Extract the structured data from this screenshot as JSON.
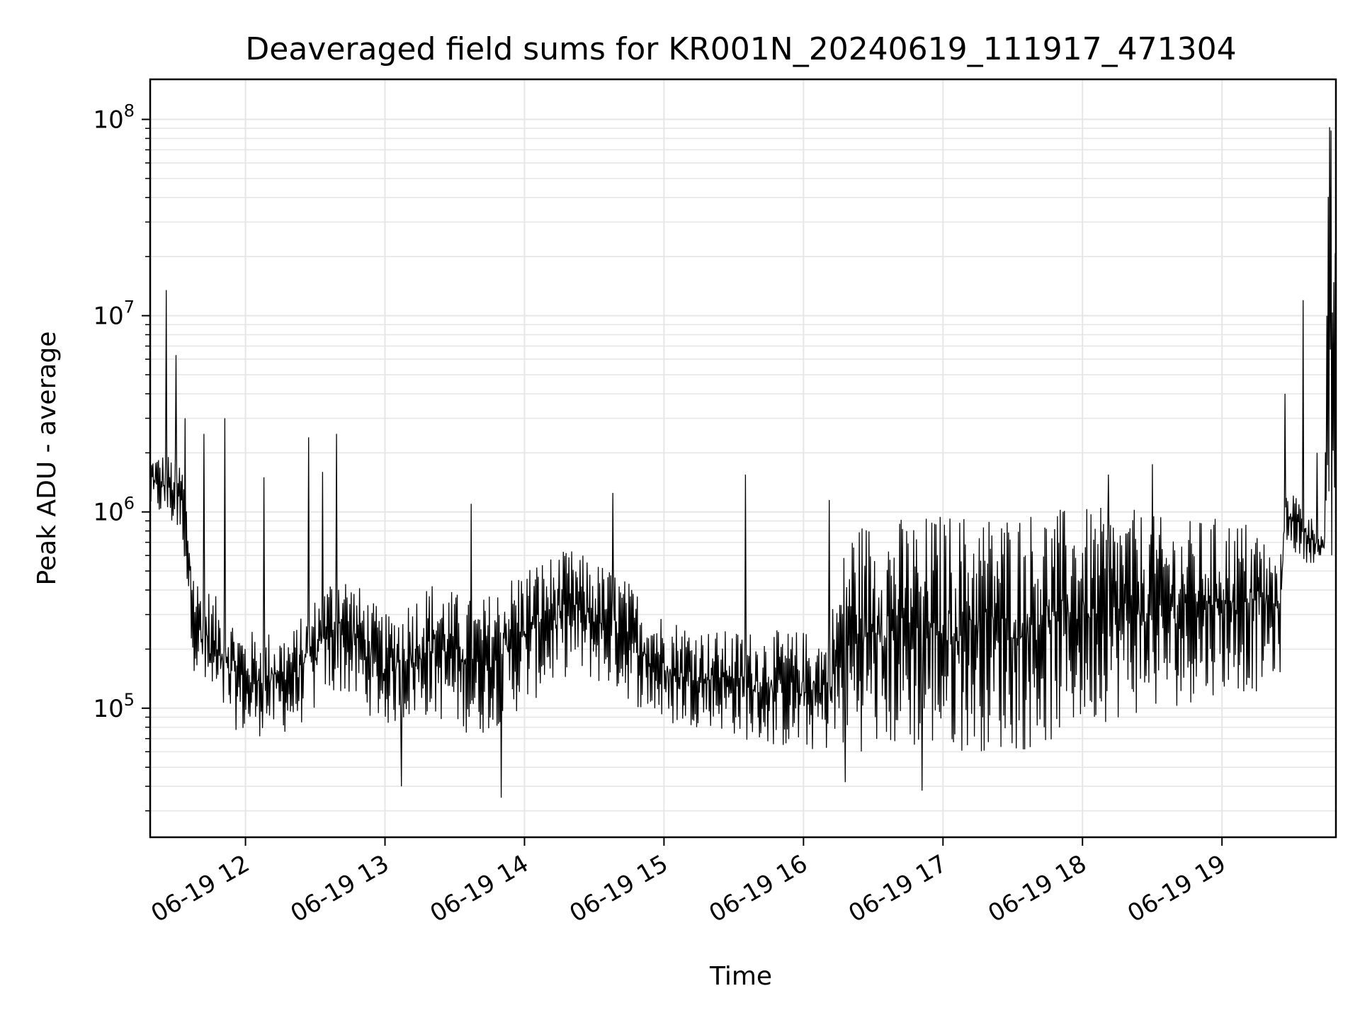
{
  "chart_data": {
    "type": "line",
    "title": "Deaveraged field sums for KR001N_20240619_111917_471304",
    "xlabel": "Time",
    "ylabel": "Peak ADU - average",
    "y_scale": "log",
    "ylim": [
      22000,
      160000000
    ],
    "xlim": [
      "2024-06-19 11:19",
      "2024-06-19 19:49"
    ],
    "grid": true,
    "line_color": "#000000",
    "grid_color": "#e6e6e6",
    "x_ticks": [
      {
        "value": "2024-06-19 12:00",
        "label": "06-19 12"
      },
      {
        "value": "2024-06-19 13:00",
        "label": "06-19 13"
      },
      {
        "value": "2024-06-19 14:00",
        "label": "06-19 14"
      },
      {
        "value": "2024-06-19 15:00",
        "label": "06-19 15"
      },
      {
        "value": "2024-06-19 16:00",
        "label": "06-19 16"
      },
      {
        "value": "2024-06-19 17:00",
        "label": "06-19 17"
      },
      {
        "value": "2024-06-19 18:00",
        "label": "06-19 18"
      },
      {
        "value": "2024-06-19 19:00",
        "label": "06-19 19"
      }
    ],
    "y_ticks": [
      {
        "value": 100000,
        "base": "10",
        "exp": "5"
      },
      {
        "value": 1000000,
        "base": "10",
        "exp": "6"
      },
      {
        "value": 10000000,
        "base": "10",
        "exp": "7"
      },
      {
        "value": 100000000,
        "base": "10",
        "exp": "8"
      }
    ],
    "series": [
      {
        "type": "envelope",
        "x": [
          "2024-06-19 11:19",
          "2024-06-19 11:26",
          "2024-06-19 11:33",
          "2024-06-19 11:38",
          "2024-06-19 11:45",
          "2024-06-19 12:00",
          "2024-06-19 12:20",
          "2024-06-19 12:40",
          "2024-06-19 13:00",
          "2024-06-19 13:20",
          "2024-06-19 13:40",
          "2024-06-19 14:00",
          "2024-06-19 14:20",
          "2024-06-19 14:40",
          "2024-06-19 15:00",
          "2024-06-19 15:20",
          "2024-06-19 15:40",
          "2024-06-19 16:00",
          "2024-06-19 16:10",
          "2024-06-19 16:20",
          "2024-06-19 16:40",
          "2024-06-19 17:00",
          "2024-06-19 17:20",
          "2024-06-19 17:40",
          "2024-06-19 18:00",
          "2024-06-19 18:20",
          "2024-06-19 18:40",
          "2024-06-19 19:00",
          "2024-06-19 19:15",
          "2024-06-19 19:25",
          "2024-06-19 19:27",
          "2024-06-19 19:35",
          "2024-06-19 19:44",
          "2024-06-19 19:46",
          "2024-06-19 19:49"
        ],
        "upper": [
          2000000,
          2000000,
          1800000,
          500000,
          400000,
          250000,
          250000,
          550000,
          300000,
          450000,
          350000,
          550000,
          650000,
          500000,
          300000,
          250000,
          250000,
          250000,
          250000,
          900000,
          950000,
          1000000,
          1000000,
          1050000,
          1050000,
          1050000,
          900000,
          950000,
          900000,
          550000,
          1500000,
          1100000,
          750000,
          100000000,
          95000000
        ],
        "lower": [
          1000000,
          900000,
          700000,
          150000,
          100000,
          70000,
          75000,
          120000,
          80000,
          90000,
          70000,
          100000,
          150000,
          120000,
          80000,
          80000,
          65000,
          60000,
          60000,
          60000,
          60000,
          60000,
          60000,
          60000,
          80000,
          90000,
          100000,
          120000,
          120000,
          150000,
          700000,
          550000,
          550000,
          500000,
          350000
        ]
      }
    ],
    "spikes": [
      {
        "x": "2024-06-19 11:26",
        "value": 13500000
      },
      {
        "x": "2024-06-19 11:30",
        "value": 6300000
      },
      {
        "x": "2024-06-19 11:34",
        "value": 3000000
      },
      {
        "x": "2024-06-19 11:42",
        "value": 2500000
      },
      {
        "x": "2024-06-19 11:51",
        "value": 3000000
      },
      {
        "x": "2024-06-19 12:08",
        "value": 1500000
      },
      {
        "x": "2024-06-19 12:27",
        "value": 2400000
      },
      {
        "x": "2024-06-19 12:33",
        "value": 1600000
      },
      {
        "x": "2024-06-19 12:39",
        "value": 2500000
      },
      {
        "x": "2024-06-19 13:37",
        "value": 1100000
      },
      {
        "x": "2024-06-19 14:38",
        "value": 1250000
      },
      {
        "x": "2024-06-19 15:35",
        "value": 1550000
      },
      {
        "x": "2024-06-19 16:11",
        "value": 1150000
      },
      {
        "x": "2024-06-19 18:11",
        "value": 1550000
      },
      {
        "x": "2024-06-19 18:30",
        "value": 1750000
      },
      {
        "x": "2024-06-19 19:27",
        "value": 4000000
      },
      {
        "x": "2024-06-19 19:35",
        "value": 12000000
      },
      {
        "x": "2024-06-19 19:41",
        "value": 2000000
      },
      {
        "x": "2024-06-19 13:50",
        "value": 35000
      },
      {
        "x": "2024-06-19 13:07",
        "value": 40000
      },
      {
        "x": "2024-06-19 16:51",
        "value": 38000
      },
      {
        "x": "2024-06-19 16:18",
        "value": 42000
      }
    ]
  }
}
